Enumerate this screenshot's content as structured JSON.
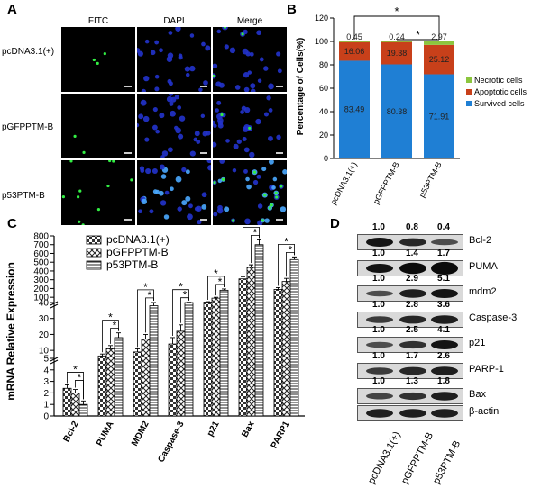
{
  "panelA": {
    "label": "A",
    "columns": [
      "FITC",
      "DAPI",
      "Merge"
    ],
    "rows": [
      "pcDNA3.1(+)",
      "pGFPPTM-B",
      "p53PTM-B"
    ]
  },
  "panelB": {
    "label": "B",
    "chart_data": {
      "type": "bar",
      "stacked": true,
      "categories": [
        "pcDNA3.1(+)",
        "pGFPPTM-B",
        "p53PTM-B"
      ],
      "series": [
        {
          "name": "Survived cells",
          "color": "#1f7fd4",
          "values": [
            83.49,
            80.38,
            71.91
          ],
          "labels": [
            "83.49",
            "80.38",
            "71.91"
          ]
        },
        {
          "name": "Apoptotic cells",
          "color": "#c8401a",
          "values": [
            16.06,
            19.38,
            25.12
          ],
          "labels": [
            "16.06",
            "19.38",
            "25.12"
          ]
        },
        {
          "name": "Necrotic cells",
          "color": "#8cc63e",
          "values": [
            0.45,
            0.24,
            2.97
          ],
          "labels": [
            "0.45",
            "0.24",
            "2.97"
          ]
        }
      ],
      "ylabel": "Percentage of Cells(%)",
      "ylim": [
        0,
        120
      ],
      "yticks": [
        "0",
        "20",
        "40",
        "60",
        "80",
        "100",
        "120"
      ],
      "significance": [
        {
          "from": 0,
          "to": 2,
          "label": "*"
        },
        {
          "from": 1,
          "to": 2,
          "label": "*"
        }
      ]
    }
  },
  "panelC": {
    "label": "C",
    "chart_data": {
      "type": "bar",
      "categories": [
        "Bcl-2",
        "PUMA",
        "MDM2",
        "Caspase-3",
        "p21",
        "Bax",
        "PARP1"
      ],
      "series": [
        {
          "name": "pcDNA3.1(+)",
          "values": [
            2.4,
            6.5,
            9,
            14,
            45,
            310,
            190
          ],
          "errors": [
            0.3,
            1.2,
            2,
            4,
            5,
            25,
            20
          ]
        },
        {
          "name": "pGFPPTM-B",
          "values": [
            2.0,
            11,
            17,
            22,
            90,
            440,
            280
          ],
          "errors": [
            0.3,
            2,
            3,
            4,
            10,
            30,
            35
          ]
        },
        {
          "name": "p53PTM-B",
          "values": [
            1.0,
            18,
            38,
            40,
            180,
            700,
            530
          ],
          "errors": [
            0.3,
            3,
            3,
            3,
            15,
            55,
            30
          ]
        }
      ],
      "ylabel": "mRNA Relative Expression",
      "yticks": [
        "0",
        "1",
        "2",
        "3",
        "4",
        "5",
        "10",
        "20",
        "30",
        "40",
        "100",
        "200",
        "300",
        "400",
        "500",
        "600",
        "700",
        "800"
      ],
      "significance_label": "*"
    }
  },
  "panelD": {
    "label": "D",
    "proteins": [
      {
        "name": "Bcl-2",
        "values": [
          "1.0",
          "0.8",
          "0.4"
        ]
      },
      {
        "name": "PUMA",
        "values": [
          "1.0",
          "1.4",
          "1.7"
        ]
      },
      {
        "name": "mdm2",
        "values": [
          "1.0",
          "2.9",
          "5.1"
        ]
      },
      {
        "name": "Caspase-3",
        "values": [
          "1.0",
          "2.8",
          "3.6"
        ]
      },
      {
        "name": "p21",
        "values": [
          "1.0",
          "2.5",
          "4.1"
        ]
      },
      {
        "name": "PARP-1",
        "values": [
          "1.0",
          "1.7",
          "2.6"
        ]
      },
      {
        "name": "Bax",
        "values": [
          "1.0",
          "1.3",
          "1.8"
        ]
      },
      {
        "name": "β-actin",
        "values": []
      }
    ],
    "lanes": [
      "pcDNA3.1(+)",
      "pGFPPTM-B",
      "p53PTM-B"
    ],
    "band_intensity": [
      [
        1.0,
        0.8,
        0.4
      ],
      [
        1.0,
        1.4,
        1.7
      ],
      [
        0.4,
        0.9,
        1.0
      ],
      [
        0.6,
        0.8,
        0.9
      ],
      [
        0.4,
        0.7,
        1.0
      ],
      [
        0.6,
        0.8,
        0.9
      ],
      [
        0.5,
        0.7,
        0.9
      ],
      [
        0.9,
        0.9,
        0.9
      ]
    ]
  }
}
